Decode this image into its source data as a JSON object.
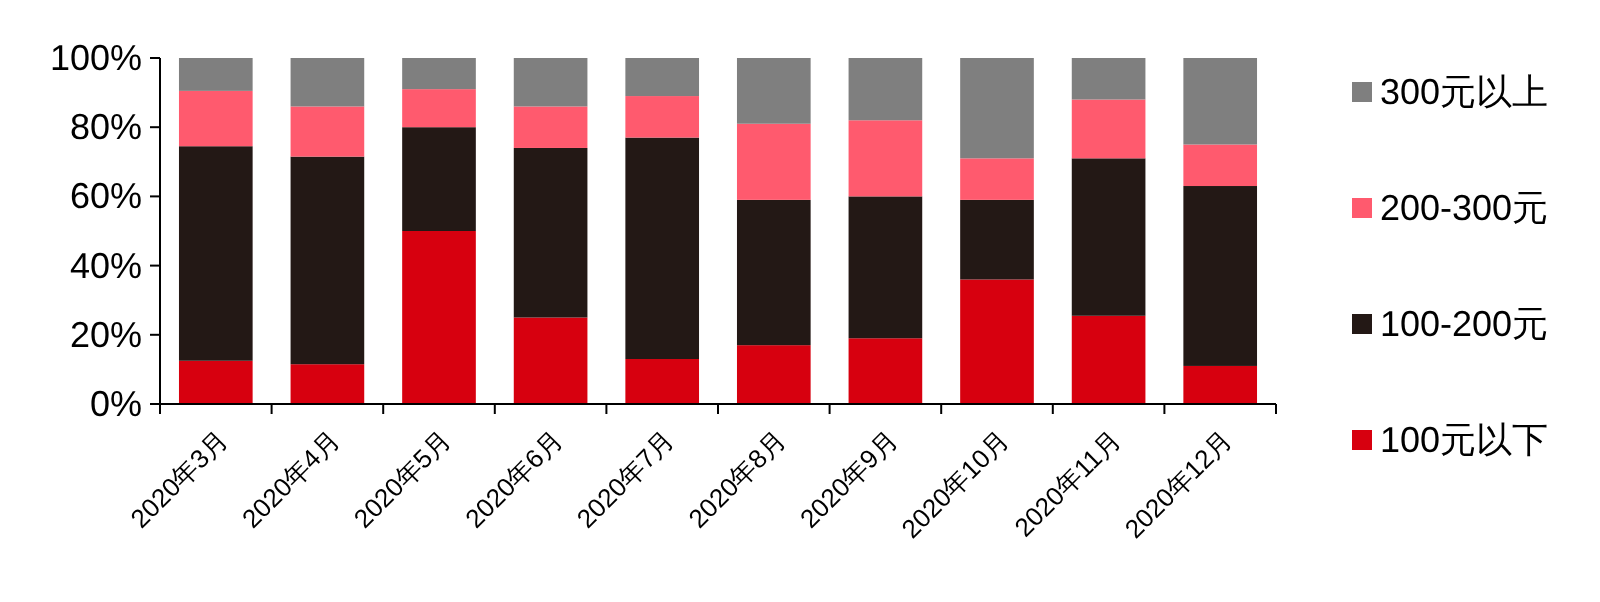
{
  "chart_data": {
    "type": "bar",
    "stacked": true,
    "legend": "right",
    "categories": [
      "2020年3月",
      "2020年4月",
      "2020年5月",
      "2020年6月",
      "2020年7月",
      "2020年8月",
      "2020年9月",
      "2020年10月",
      "2020年11月",
      "2020年12月"
    ],
    "ylim": [
      0,
      100
    ],
    "yticks": [
      {
        "value": 0,
        "label": "0%"
      },
      {
        "value": 20,
        "label": "20%"
      },
      {
        "value": 40,
        "label": "40%"
      },
      {
        "value": 60,
        "label": "60%"
      },
      {
        "value": 80,
        "label": "80%"
      },
      {
        "value": 100,
        "label": "100%"
      }
    ],
    "series": [
      {
        "name": "100元以下",
        "color": "#d7000f",
        "values": [
          12.5,
          11.5,
          50,
          25,
          13,
          17,
          19,
          36,
          25.5,
          11
        ]
      },
      {
        "name": "100-200元",
        "color": "#231815",
        "values": [
          62,
          60,
          30,
          49,
          64,
          42,
          41,
          23,
          45.5,
          52
        ]
      },
      {
        "name": "200-300元",
        "color": "#ff5a6e",
        "values": [
          16,
          14.5,
          11,
          12,
          12,
          22,
          22,
          12,
          17,
          12
        ]
      },
      {
        "name": "300元以上",
        "color": "#7f7f7f",
        "values": [
          9.5,
          14,
          9,
          14,
          11,
          19,
          18,
          29,
          12,
          25
        ]
      }
    ]
  }
}
